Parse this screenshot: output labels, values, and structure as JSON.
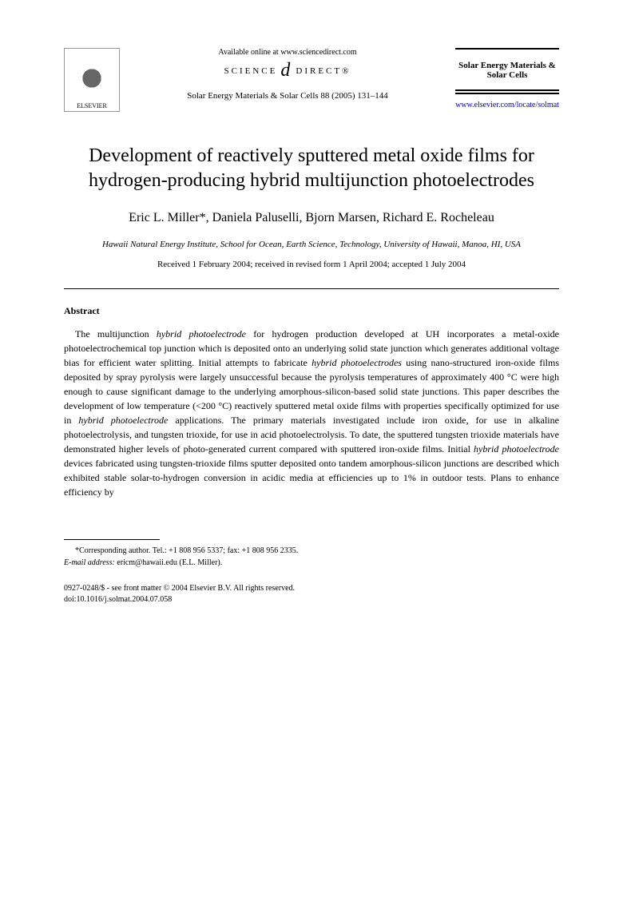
{
  "header": {
    "publisher_name": "ELSEVIER",
    "available_text": "Available online at www.sciencedirect.com",
    "science_text_left": "SCIENCE",
    "science_d": "d",
    "science_text_right": "DIRECT®",
    "citation": "Solar Energy Materials & Solar Cells 88 (2005) 131–144",
    "journal_name": "Solar Energy Materials & Solar Cells",
    "journal_url": "www.elsevier.com/locate/solmat"
  },
  "title": "Development of reactively sputtered metal oxide films for hydrogen-producing hybrid multijunction photoelectrodes",
  "authors": "Eric L. Miller*, Daniela Paluselli, Bjorn Marsen, Richard E. Rocheleau",
  "affiliation": "Hawaii Natural Energy Institute, School for Ocean, Earth Science, Technology, University of Hawaii, Manoa, HI, USA",
  "dates": "Received 1 February 2004; received in revised form 1 April 2004; accepted 1 July 2004",
  "abstract_heading": "Abstract",
  "abstract_body": "The multijunction <em>hybrid photoelectrode</em> for hydrogen production developed at UH incorporates a metal-oxide photoelectrochemical top junction which is deposited onto an underlying solid state junction which generates additional voltage bias for efficient water splitting. Initial attempts to fabricate <em>hybrid photoelectrodes</em> using nano-structured iron-oxide films deposited by spray pyrolysis were largely unsuccessful because the pyrolysis temperatures of approximately 400 °C were high enough to cause significant damage to the underlying amorphous-silicon-based solid state junctions. This paper describes the development of low temperature (<200 °C) reactively sputtered metal oxide films with properties specifically optimized for use in <em>hybrid photoelectrode</em> applications. The primary materials investigated include iron oxide, for use in alkaline photoelectrolysis, and tungsten trioxide, for use in acid photoelectrolysis. To date, the sputtered tungsten trioxide materials have demonstrated higher levels of photo-generated current compared with sputtered iron-oxide films. Initial <em>hybrid photoelectrode</em> devices fabricated using tungsten-trioxide films sputter deposited onto tandem amorphous-silicon junctions are described which exhibited stable solar-to-hydrogen conversion in acidic media at efficiencies up to 1% in outdoor tests. Plans to enhance efficiency by",
  "footer": {
    "corresponding_label": "*Corresponding author. Tel.: +1 808 956 5337; fax: +1 808 956 2335.",
    "email_label": "E-mail address:",
    "email_value": "ericm@hawaii.edu (E.L. Miller).",
    "copyright": "0927-0248/$ - see front matter © 2004 Elsevier B.V. All rights reserved.",
    "doi": "doi:10.1016/j.solmat.2004.07.058"
  },
  "colors": {
    "text": "#000000",
    "link": "#0000cc",
    "background": "#ffffff"
  },
  "typography": {
    "title_fontsize": 24,
    "authors_fontsize": 16,
    "body_fontsize": 12,
    "footer_fontsize": 10,
    "font_family": "Georgia, Times New Roman, serif"
  }
}
